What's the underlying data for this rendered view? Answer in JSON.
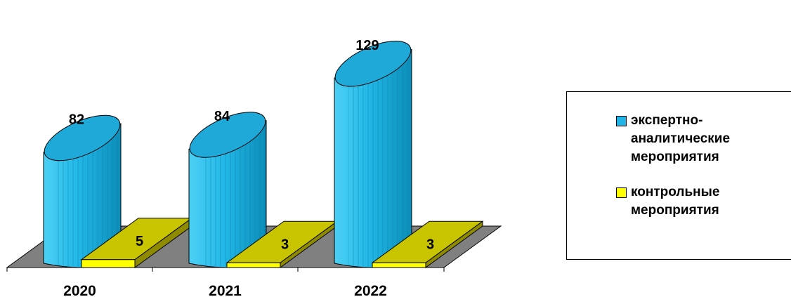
{
  "chart_data": {
    "type": "bar",
    "style": "3d-cylinder-and-box",
    "categories": [
      "2020",
      "2021",
      "2022"
    ],
    "series": [
      {
        "name": "экспертно-аналитические мероприятия",
        "values": [
          82,
          84,
          129
        ],
        "color": "#1fb5e6"
      },
      {
        "name": "контрольные мероприятия",
        "values": [
          5,
          3,
          3
        ],
        "color": "#ffff00"
      }
    ],
    "data_labels": true,
    "legend_position": "right",
    "grid": false
  },
  "legend": {
    "items": [
      {
        "label": "экспертно-аналитические мероприятия",
        "color": "#1fb5e6"
      },
      {
        "label": "контрольные мероприятия",
        "color": "#ffff00"
      }
    ]
  }
}
